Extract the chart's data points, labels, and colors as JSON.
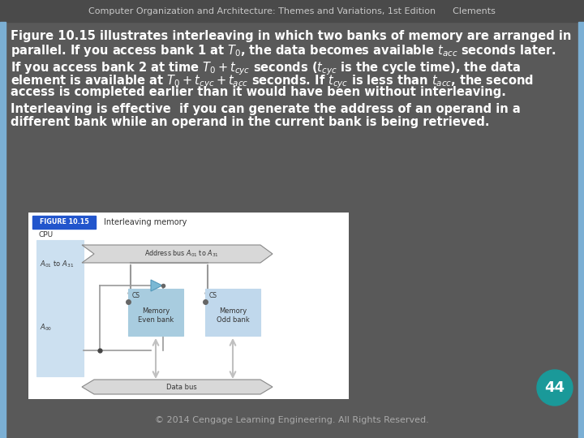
{
  "title_text": "Computer Organization and Architecture: Themes and Variations, 1st Edition      Clements",
  "header_bg": "#4a4a4a",
  "slide_bg": "#595959",
  "header_text_color": "#c8c8c8",
  "body_text_color": "#ffffff",
  "footer_text": "© 2014 Cengage Learning Engineering. All Rights Reserved.",
  "page_number": "44",
  "page_num_bg": "#1a9999",
  "fig_label": "FIGURE 10.15",
  "fig_title": "Interleaving memory",
  "fig_label_bg": "#2255cc",
  "fig_bg": "#ffffff",
  "fig_cpu_bg": "#cce0f0",
  "fig_mem_even_bg": "#a8ccdf",
  "fig_mem_odd_bg": "#c0d8ec",
  "left_border_color": "#7bafd4",
  "right_border_color": "#7bafd4",
  "arrow_color": "#aaaaaa",
  "bus_color": "#cccccc"
}
